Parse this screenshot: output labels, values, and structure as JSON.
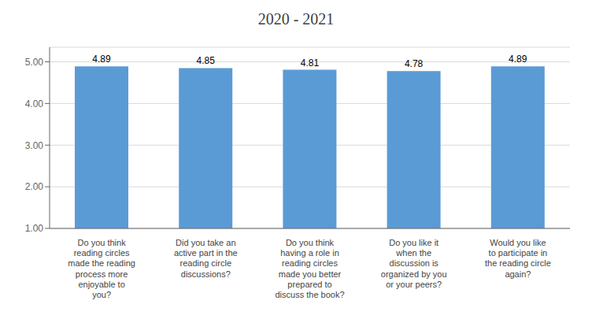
{
  "chart_data": {
    "type": "bar",
    "title": "2020 - 2021",
    "categories": [
      "Do you think\nreading circles\nmade the reading\nprocess more\nenjoyable to\nyou?",
      "Did you take an\nactive part in the\nreading circle\ndiscussions?",
      "Do you think\nhaving a role in\nreading circles\nmade you better\nprepared to\ndiscuss the book?",
      "Do you like it\nwhen the\ndiscussion is\norganized by you\nor your peers?",
      "Would you like\nto participate in\nthe reading circle\nagain?"
    ],
    "values": [
      4.89,
      4.85,
      4.81,
      4.78,
      4.89
    ],
    "color": "#5b9bd5",
    "ylim": [
      1.0,
      5.35
    ],
    "yticks": [
      {
        "value": 1.0,
        "label": "1.00"
      },
      {
        "value": 2.0,
        "label": "2.00"
      },
      {
        "value": 3.0,
        "label": "3.00"
      },
      {
        "value": 4.0,
        "label": "4.00"
      },
      {
        "value": 5.0,
        "label": "5.00"
      }
    ],
    "grid": true,
    "data_labels": true
  }
}
